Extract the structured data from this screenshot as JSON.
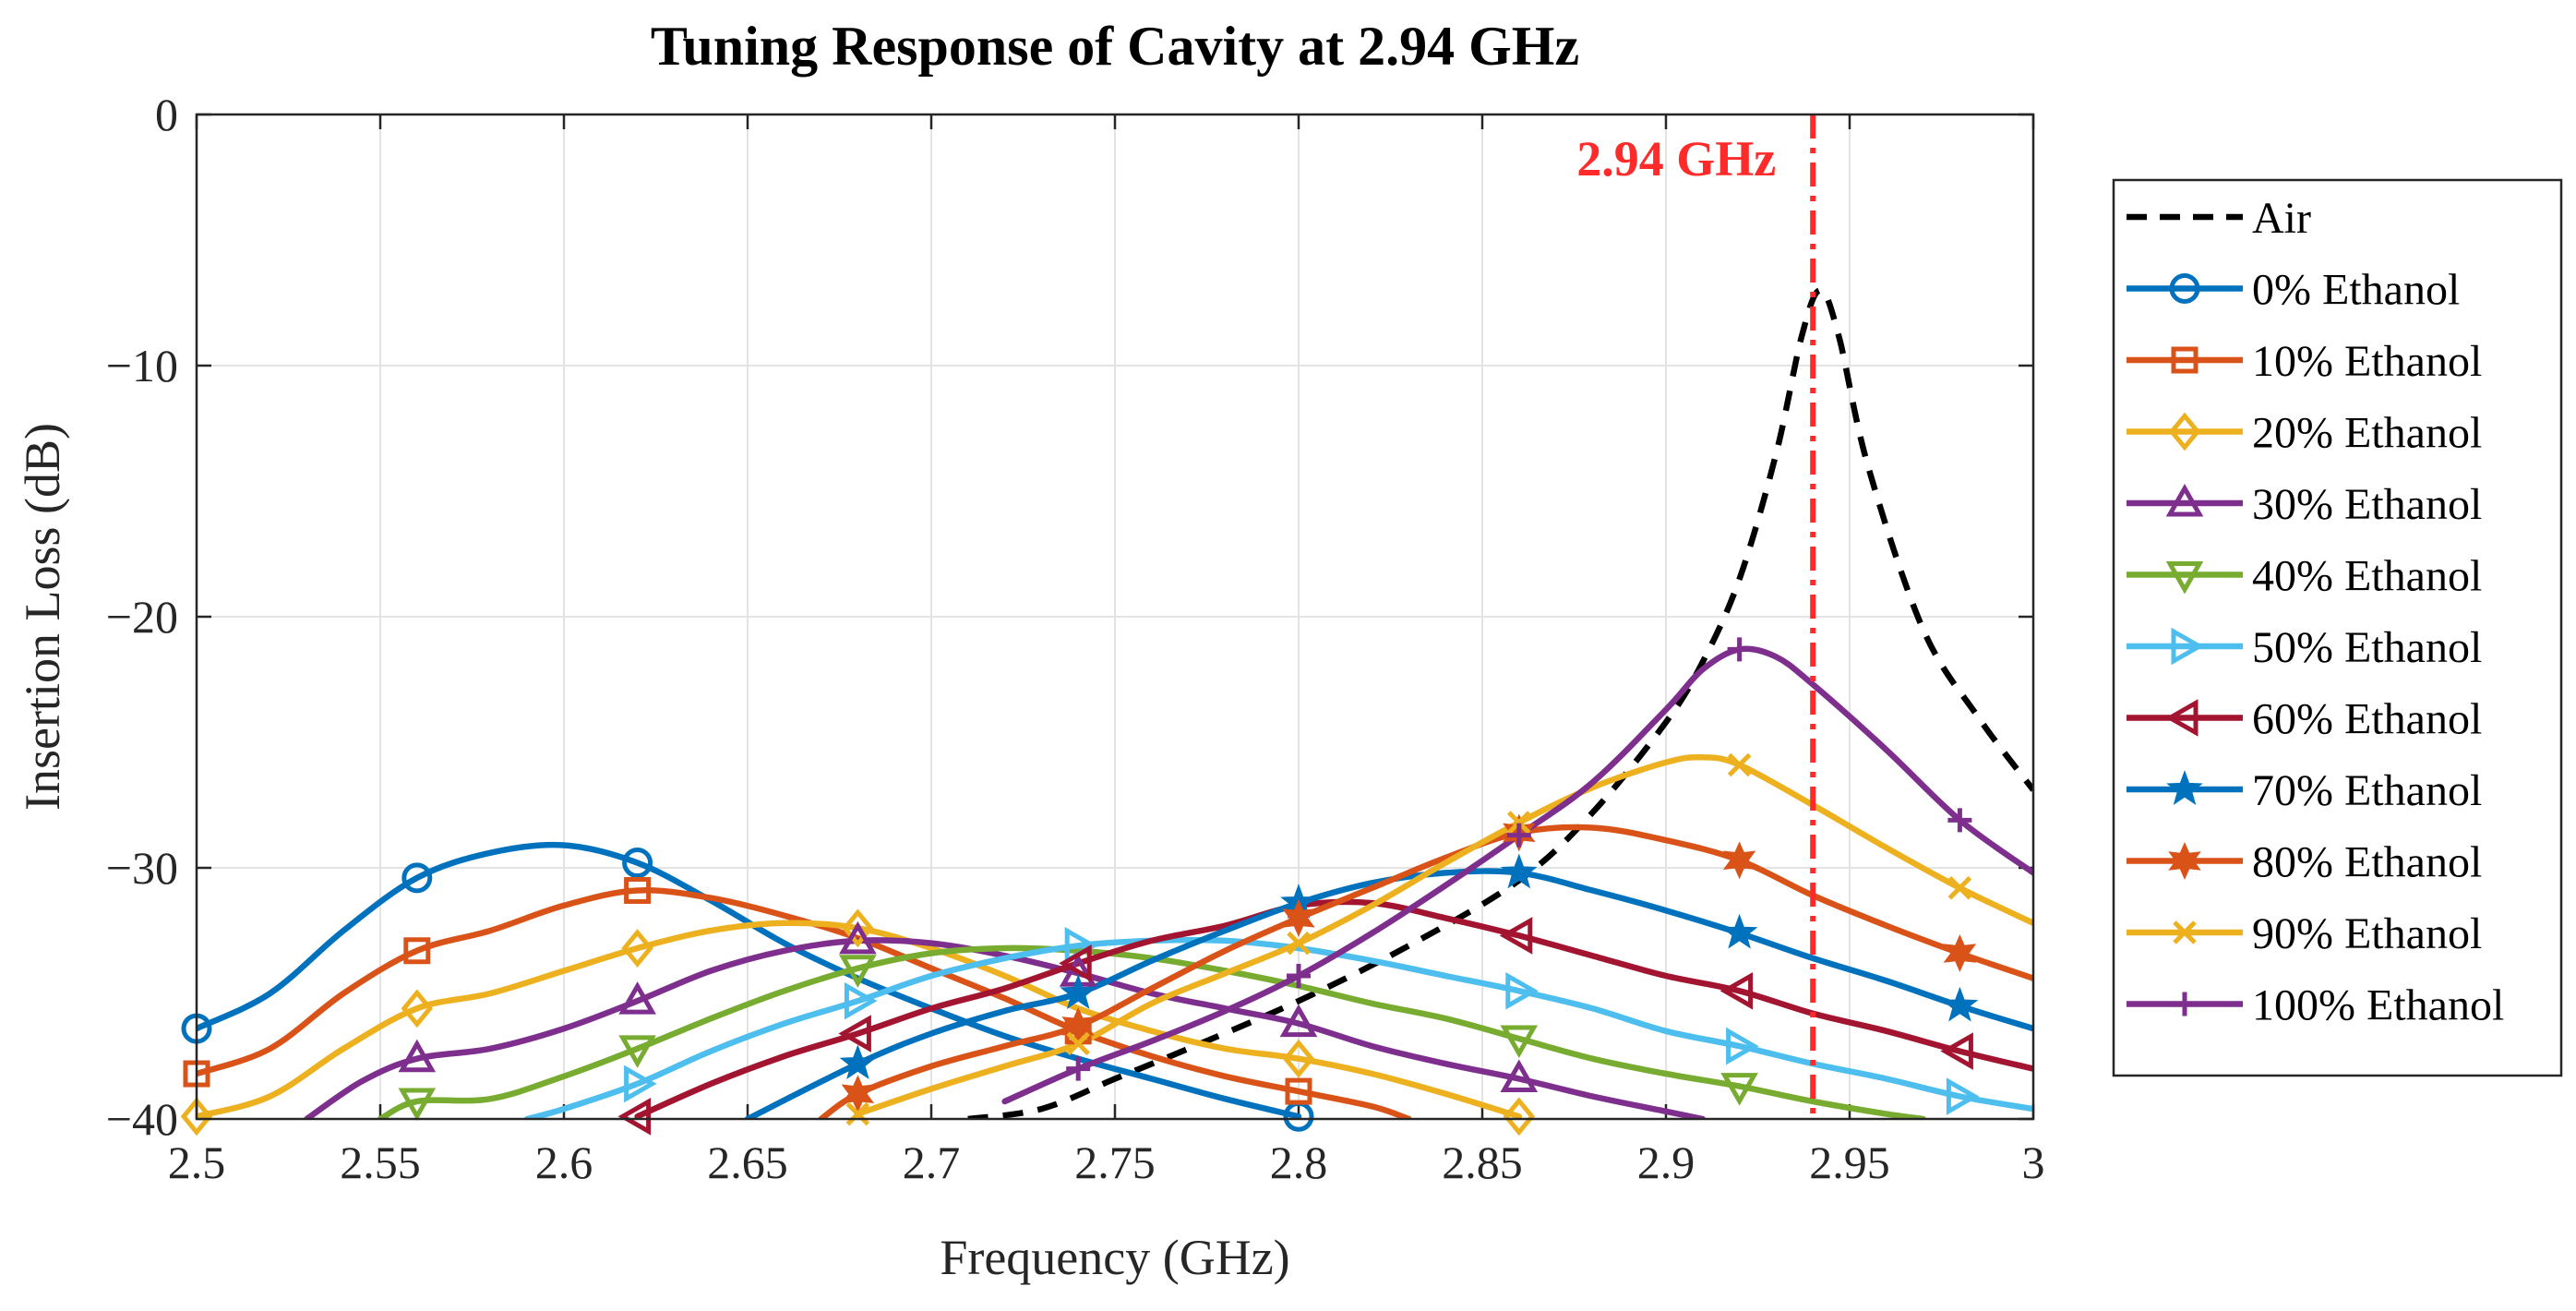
{
  "chart_data": {
    "type": "line",
    "title": "Tuning Response of Cavity at 2.94 GHz",
    "xlabel": "Frequency (GHz)",
    "ylabel": "Insertion Loss (dB)",
    "xlim": [
      2.5,
      3.0
    ],
    "ylim": [
      -40,
      0
    ],
    "grid": true,
    "legend_position": "outside-right",
    "xticks": [
      2.5,
      2.55,
      2.6,
      2.65,
      2.7,
      2.75,
      2.8,
      2.85,
      2.9,
      2.95,
      3.0
    ],
    "xtick_labels": [
      "2.5",
      "2.55",
      "2.6",
      "2.65",
      "2.7",
      "2.75",
      "2.8",
      "2.85",
      "2.9",
      "2.95",
      "3"
    ],
    "yticks": [
      0,
      -10,
      -20,
      -30,
      -40
    ],
    "ytick_labels": [
      "0",
      "−10",
      "−20",
      "−30",
      "−40"
    ],
    "annotation": {
      "text": "2.94 GHz",
      "x": 2.94,
      "color": "#ff2a2a"
    },
    "series": [
      {
        "name": "Air",
        "color": "#000000",
        "marker": "none",
        "dashed": true,
        "x": [
          2.71,
          2.73,
          2.75,
          2.77,
          2.8,
          2.83,
          2.86,
          2.88,
          2.9,
          2.91,
          2.92,
          2.93,
          2.937,
          2.942,
          2.947,
          2.955,
          2.97,
          2.985,
          3.0
        ],
        "y": [
          -40,
          -39.6,
          -38.4,
          -37.2,
          -35.3,
          -33.1,
          -30.5,
          -27.8,
          -24.2,
          -21.8,
          -18.5,
          -13.5,
          -8.8,
          -7.0,
          -8.8,
          -14.0,
          -20.5,
          -24.0,
          -26.9
        ]
      },
      {
        "name": "0% Ethanol",
        "color": "#0072bd",
        "marker": "circle",
        "x": [
          2.5,
          2.52,
          2.54,
          2.56,
          2.58,
          2.6,
          2.62,
          2.64,
          2.66,
          2.68,
          2.7,
          2.72,
          2.74,
          2.76,
          2.78,
          2.8
        ],
        "y": [
          -36.4,
          -35.0,
          -32.5,
          -30.4,
          -29.4,
          -29.1,
          -29.8,
          -31.3,
          -33.0,
          -34.4,
          -35.6,
          -36.7,
          -37.6,
          -38.4,
          -39.2,
          -39.9
        ],
        "markers_x": [
          2.5,
          2.56,
          2.62,
          2.8
        ]
      },
      {
        "name": "10% Ethanol",
        "color": "#d95319",
        "marker": "square",
        "x": [
          2.5,
          2.52,
          2.54,
          2.56,
          2.58,
          2.6,
          2.62,
          2.64,
          2.66,
          2.68,
          2.7,
          2.72,
          2.74,
          2.76,
          2.78,
          2.8,
          2.82,
          2.83
        ],
        "y": [
          -38.2,
          -37.2,
          -35.0,
          -33.3,
          -32.5,
          -31.5,
          -30.9,
          -31.2,
          -31.9,
          -32.8,
          -34.0,
          -35.2,
          -36.5,
          -37.5,
          -38.3,
          -38.9,
          -39.5,
          -40.0
        ],
        "markers_x": [
          2.5,
          2.56,
          2.62,
          2.74,
          2.8
        ]
      },
      {
        "name": "20% Ethanol",
        "color": "#edb120",
        "marker": "diamond",
        "x": [
          2.5,
          2.52,
          2.54,
          2.56,
          2.58,
          2.6,
          2.62,
          2.64,
          2.66,
          2.68,
          2.7,
          2.72,
          2.74,
          2.76,
          2.78,
          2.8,
          2.82,
          2.84,
          2.86
        ],
        "y": [
          -39.9,
          -39.1,
          -37.2,
          -35.6,
          -35.0,
          -34.1,
          -33.2,
          -32.5,
          -32.2,
          -32.4,
          -33.2,
          -34.3,
          -35.6,
          -36.5,
          -37.2,
          -37.6,
          -38.2,
          -39.0,
          -39.9
        ],
        "markers_x": [
          2.5,
          2.56,
          2.62,
          2.68,
          2.8,
          2.86
        ]
      },
      {
        "name": "30% Ethanol",
        "color": "#7e2f8e",
        "marker": "triangle-up",
        "x": [
          2.53,
          2.545,
          2.56,
          2.58,
          2.6,
          2.62,
          2.64,
          2.66,
          2.68,
          2.7,
          2.72,
          2.74,
          2.76,
          2.78,
          2.8,
          2.82,
          2.84,
          2.86,
          2.88,
          2.9,
          2.91
        ],
        "y": [
          -40.0,
          -38.5,
          -37.6,
          -37.2,
          -36.4,
          -35.3,
          -34.1,
          -33.3,
          -32.9,
          -33.0,
          -33.5,
          -34.2,
          -35.0,
          -35.6,
          -36.2,
          -37.1,
          -37.8,
          -38.4,
          -39.1,
          -39.7,
          -40.0
        ],
        "markers_x": [
          2.56,
          2.62,
          2.68,
          2.74,
          2.8,
          2.86
        ]
      },
      {
        "name": "40% Ethanol",
        "color": "#77ac30",
        "marker": "triangle-down",
        "x": [
          2.55,
          2.56,
          2.58,
          2.6,
          2.62,
          2.64,
          2.66,
          2.68,
          2.7,
          2.72,
          2.74,
          2.76,
          2.78,
          2.8,
          2.82,
          2.84,
          2.86,
          2.88,
          2.9,
          2.92,
          2.94,
          2.96,
          2.97
        ],
        "y": [
          -40.0,
          -39.3,
          -39.2,
          -38.3,
          -37.2,
          -36.0,
          -34.9,
          -34.0,
          -33.4,
          -33.2,
          -33.3,
          -33.6,
          -34.1,
          -34.7,
          -35.4,
          -36.0,
          -36.8,
          -37.6,
          -38.2,
          -38.7,
          -39.3,
          -39.8,
          -40.0
        ],
        "markers_x": [
          2.56,
          2.62,
          2.68,
          2.86,
          2.92
        ]
      },
      {
        "name": "50% Ethanol",
        "color": "#4dbeee",
        "marker": "triangle-right",
        "x": [
          2.59,
          2.6,
          2.62,
          2.64,
          2.66,
          2.68,
          2.7,
          2.72,
          2.74,
          2.76,
          2.78,
          2.8,
          2.82,
          2.84,
          2.86,
          2.88,
          2.9,
          2.92,
          2.94,
          2.96,
          2.98,
          3.0
        ],
        "y": [
          -40.0,
          -39.6,
          -38.6,
          -37.3,
          -36.2,
          -35.3,
          -34.3,
          -33.6,
          -33.1,
          -32.9,
          -32.9,
          -33.2,
          -33.7,
          -34.3,
          -34.9,
          -35.6,
          -36.5,
          -37.1,
          -37.8,
          -38.4,
          -39.1,
          -39.6
        ],
        "markers_x": [
          2.62,
          2.68,
          2.74,
          2.86,
          2.92,
          2.98
        ]
      },
      {
        "name": "60% Ethanol",
        "color": "#a2142f",
        "marker": "triangle-left",
        "x": [
          2.62,
          2.64,
          2.66,
          2.68,
          2.7,
          2.72,
          2.74,
          2.76,
          2.78,
          2.8,
          2.82,
          2.84,
          2.86,
          2.88,
          2.9,
          2.92,
          2.94,
          2.96,
          2.98,
          3.0
        ],
        "y": [
          -39.9,
          -38.6,
          -37.5,
          -36.6,
          -35.6,
          -34.8,
          -33.8,
          -32.9,
          -32.3,
          -31.5,
          -31.4,
          -32.0,
          -32.7,
          -33.5,
          -34.3,
          -34.9,
          -35.8,
          -36.5,
          -37.3,
          -38.0
        ],
        "markers_x": [
          2.62,
          2.68,
          2.74,
          2.86,
          2.92,
          2.98
        ]
      },
      {
        "name": "70% Ethanol",
        "color": "#0072bd",
        "marker": "star",
        "x": [
          2.65,
          2.68,
          2.7,
          2.72,
          2.74,
          2.76,
          2.78,
          2.8,
          2.82,
          2.84,
          2.86,
          2.88,
          2.9,
          2.92,
          2.94,
          2.96,
          2.98,
          3.0
        ],
        "y": [
          -40.0,
          -37.8,
          -36.6,
          -35.7,
          -35.0,
          -33.7,
          -32.5,
          -31.4,
          -30.6,
          -30.2,
          -30.2,
          -30.9,
          -31.7,
          -32.6,
          -33.6,
          -34.5,
          -35.5,
          -36.4
        ],
        "markers_x": [
          2.68,
          2.74,
          2.8,
          2.86,
          2.92,
          2.98
        ]
      },
      {
        "name": "80% Ethanol",
        "color": "#d95319",
        "marker": "hexagram",
        "x": [
          2.67,
          2.68,
          2.7,
          2.72,
          2.74,
          2.76,
          2.78,
          2.8,
          2.82,
          2.84,
          2.86,
          2.88,
          2.9,
          2.92,
          2.94,
          2.96,
          2.98,
          3.0
        ],
        "y": [
          -40.0,
          -39.0,
          -37.9,
          -37.1,
          -36.3,
          -34.8,
          -33.3,
          -32.0,
          -30.8,
          -29.6,
          -28.6,
          -28.4,
          -28.9,
          -29.7,
          -31.1,
          -32.3,
          -33.4,
          -34.4
        ],
        "markers_x": [
          2.68,
          2.74,
          2.8,
          2.86,
          2.92,
          2.98
        ]
      },
      {
        "name": "90% Ethanol",
        "color": "#edb120",
        "marker": "x",
        "x": [
          2.68,
          2.7,
          2.72,
          2.74,
          2.76,
          2.78,
          2.8,
          2.82,
          2.84,
          2.86,
          2.88,
          2.9,
          2.91,
          2.92,
          2.94,
          2.96,
          2.98,
          3.0
        ],
        "y": [
          -39.8,
          -38.8,
          -37.9,
          -37.0,
          -35.4,
          -34.2,
          -33.0,
          -31.5,
          -29.8,
          -28.2,
          -26.8,
          -25.8,
          -25.6,
          -25.9,
          -27.5,
          -29.2,
          -30.8,
          -32.2
        ],
        "markers_x": [
          2.68,
          2.74,
          2.8,
          2.86,
          2.92,
          2.98
        ]
      },
      {
        "name": "100% Ethanol",
        "color": "#7e2f8e",
        "marker": "plus",
        "x": [
          2.72,
          2.74,
          2.76,
          2.78,
          2.8,
          2.82,
          2.84,
          2.86,
          2.88,
          2.9,
          2.91,
          2.92,
          2.93,
          2.94,
          2.96,
          2.98,
          3.0
        ],
        "y": [
          -39.3,
          -38.0,
          -36.9,
          -35.7,
          -34.3,
          -32.6,
          -30.7,
          -28.7,
          -26.6,
          -23.7,
          -22.1,
          -21.3,
          -21.6,
          -22.7,
          -25.3,
          -28.1,
          -30.2
        ],
        "markers_x": [
          2.74,
          2.8,
          2.86,
          2.92,
          2.98
        ]
      }
    ]
  }
}
